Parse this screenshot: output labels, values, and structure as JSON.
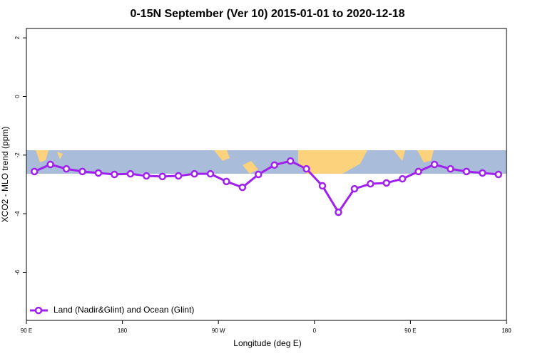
{
  "chart_data": {
    "type": "line",
    "title": "0-15N September (Ver 10)   2015-01-01 to 2020-12-18",
    "x_label": "Longitude (deg E)",
    "y_label": "XCO2 - MLO trend (ppm)",
    "x": [
      97.5,
      112.5,
      127.5,
      142.5,
      157.5,
      172.5,
      187.5,
      202.5,
      217.5,
      232.5,
      247.5,
      262.5,
      277.5,
      292.5,
      307.5,
      322.5,
      337.5,
      352.5,
      367.5,
      382.5,
      397.5,
      412.5,
      427.5,
      442.5,
      457.5,
      472.5,
      487.5,
      502.5,
      517.5,
      532.5
    ],
    "series": [
      {
        "name": "Land (Nadir&Glint) and Ocean (Glint)",
        "color": "#a020f0",
        "values": [
          -2.56,
          -2.32,
          -2.47,
          -2.56,
          -2.61,
          -2.66,
          -2.64,
          -2.71,
          -2.73,
          -2.71,
          -2.64,
          -2.64,
          -2.9,
          -3.1,
          -2.66,
          -2.34,
          -2.2,
          -2.47,
          -3.05,
          -3.95,
          -3.15,
          -2.98,
          -2.95,
          -2.81,
          -2.56,
          -2.32,
          -2.47,
          -2.56,
          -2.61,
          -2.66
        ]
      }
    ],
    "xlim": [
      90,
      540
    ],
    "xticks": [
      {
        "value": 90,
        "label": "90 E"
      },
      {
        "value": 180,
        "label": "180"
      },
      {
        "value": 270,
        "label": "90 W"
      },
      {
        "value": 360,
        "label": "0"
      },
      {
        "value": 450,
        "label": "90 E"
      },
      {
        "value": 540,
        "label": "180"
      }
    ],
    "ylim": [
      -7.64,
      2.32
    ],
    "yticks": [
      2,
      0,
      -2,
      -4,
      -6
    ],
    "legend": "bottom-left"
  }
}
